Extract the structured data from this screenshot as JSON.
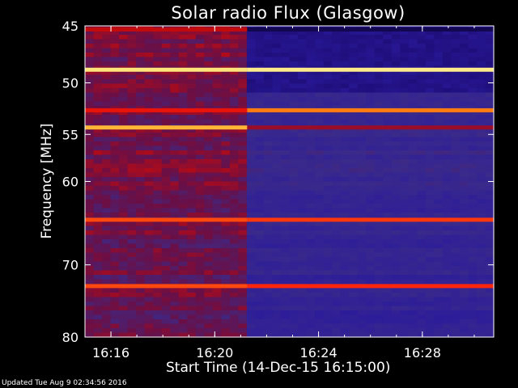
{
  "chart_data": {
    "type": "heatmap",
    "title": "Solar radio Flux (Glasgow)",
    "xlabel": "Start Time (14-Dec-15 16:15:00)",
    "ylabel": "Frequency [MHz]",
    "x_unit": "time",
    "y_scale": "log",
    "xlim": [
      "16:15:00",
      "16:30:45"
    ],
    "ylim": [
      45,
      80
    ],
    "x_ticks": [
      "16:16",
      "16:20",
      "16:24",
      "16:28"
    ],
    "y_ticks": [
      45,
      50,
      55,
      60,
      70,
      80
    ],
    "colormap": [
      "#000000",
      "#1a0a6e",
      "#2a1a9c",
      "#3a2a8a",
      "#6a0f46",
      "#c80a0a",
      "#ff1a0a",
      "#ff7a10",
      "#ffd54a",
      "#fff3a0"
    ],
    "intensity_change_time": "16:21:15",
    "bands_mhz": [
      {
        "freq": 45.3,
        "before": 0.55,
        "after": 0.08
      },
      {
        "freq": 48.8,
        "before": 0.95,
        "after": 0.97
      },
      {
        "freq": 52.6,
        "before": 0.62,
        "after": 0.78
      },
      {
        "freq": 54.3,
        "before": 0.85,
        "after": 0.5
      },
      {
        "freq": 64.4,
        "before": 0.72,
        "after": 0.7
      },
      {
        "freq": 72.8,
        "before": 0.72,
        "after": 0.68
      }
    ],
    "grid": false
  },
  "labels": {
    "title": "Solar radio Flux (Glasgow)",
    "xlabel": "Start Time (14-Dec-15 16:15:00)",
    "ylabel": "Frequency [MHz]",
    "footer": "Updated Tue Aug  9 02:34:56 2016"
  }
}
